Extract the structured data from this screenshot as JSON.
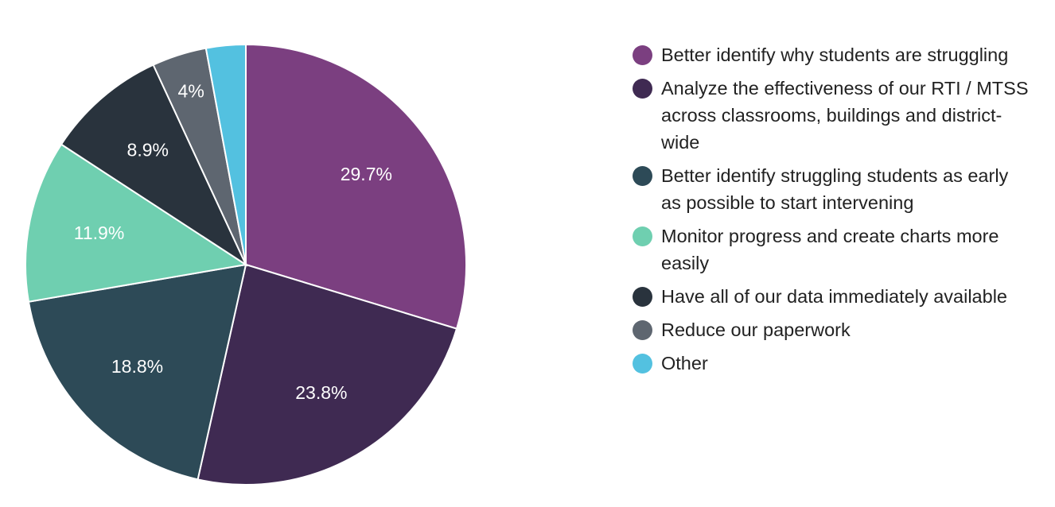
{
  "chart_data": {
    "type": "pie",
    "categories": [
      "Better identify why students are struggling",
      "Analyze the effectiveness of our RTI / MTSS across classrooms, buildings and district-wide",
      "Better identify struggling students as early as possible to start intervening",
      "Monitor progress and create charts more easily",
      "Have all of our data immediately available",
      "Reduce our paperwork",
      "Other"
    ],
    "values": [
      29.7,
      23.8,
      18.8,
      11.9,
      8.9,
      4,
      2.9
    ],
    "value_labels": [
      "29.7%",
      "23.8%",
      "18.8%",
      "11.9%",
      "8.9%",
      "4%",
      null
    ],
    "colors": [
      "#7b3f80",
      "#3f2a52",
      "#2d4a57",
      "#6fcfb0",
      "#29333d",
      "#5e6670",
      "#53c1e0"
    ]
  }
}
